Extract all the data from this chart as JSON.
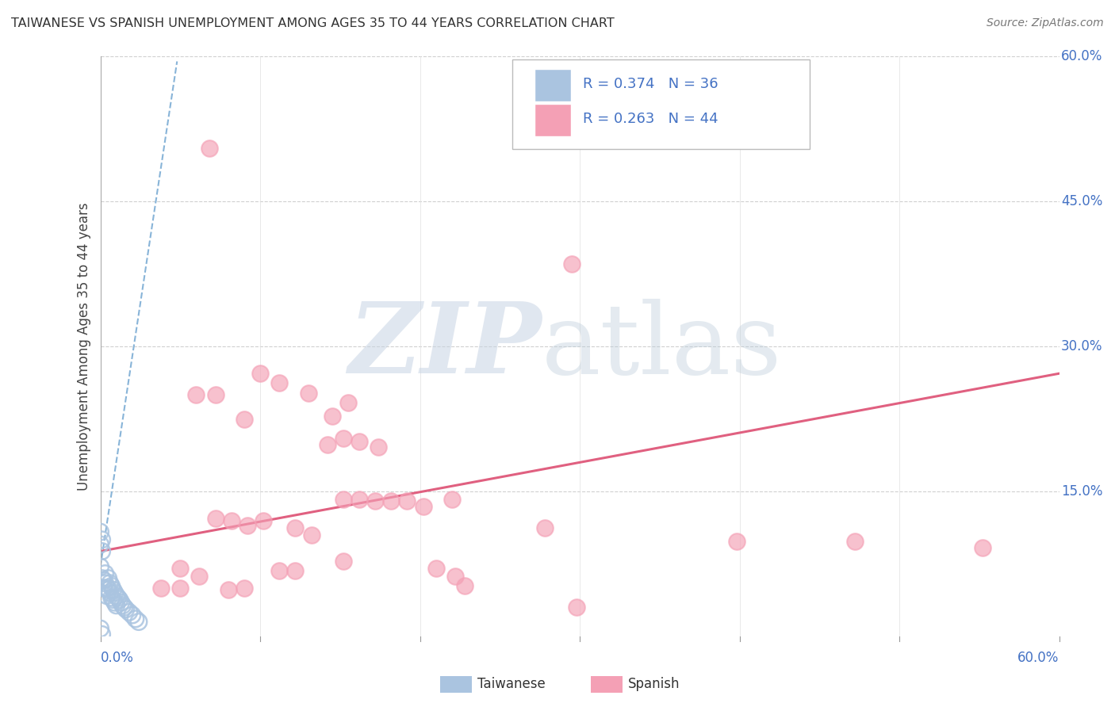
{
  "title": "TAIWANESE VS SPANISH UNEMPLOYMENT AMONG AGES 35 TO 44 YEARS CORRELATION CHART",
  "source": "Source: ZipAtlas.com",
  "ylabel": "Unemployment Among Ages 35 to 44 years",
  "xlim": [
    0.0,
    0.6
  ],
  "ylim": [
    0.0,
    0.6
  ],
  "grid_color": "#d0d0d0",
  "background_color": "#ffffff",
  "taiwanese_color": "#aac4e0",
  "spanish_color": "#f4a0b5",
  "taiwanese_edge_color": "#aac4e0",
  "spanish_edge_color": "#f4a0b5",
  "taiwanese_trend_color": "#88b4d8",
  "spanish_trend_color": "#e06080",
  "right_tick_color": "#4472c4",
  "bottom_tick_color": "#4472c4",
  "legend_text_color": "#4472c4",
  "taiwanese_R": "0.374",
  "taiwanese_N": "36",
  "spanish_R": "0.263",
  "spanish_N": "44",
  "taiwanese_points": [
    [
      0.0,
      0.108
    ],
    [
      0.0,
      0.095
    ],
    [
      0.001,
      0.1
    ],
    [
      0.001,
      0.088
    ],
    [
      0.0,
      0.072
    ],
    [
      0.001,
      0.06
    ],
    [
      0.002,
      0.058
    ],
    [
      0.002,
      0.05
    ],
    [
      0.003,
      0.065
    ],
    [
      0.003,
      0.055
    ],
    [
      0.004,
      0.05
    ],
    [
      0.004,
      0.042
    ],
    [
      0.005,
      0.06
    ],
    [
      0.005,
      0.048
    ],
    [
      0.006,
      0.055
    ],
    [
      0.006,
      0.045
    ],
    [
      0.007,
      0.052
    ],
    [
      0.007,
      0.04
    ],
    [
      0.008,
      0.048
    ],
    [
      0.008,
      0.038
    ],
    [
      0.009,
      0.045
    ],
    [
      0.009,
      0.035
    ],
    [
      0.01,
      0.042
    ],
    [
      0.01,
      0.032
    ],
    [
      0.011,
      0.04
    ],
    [
      0.012,
      0.038
    ],
    [
      0.013,
      0.035
    ],
    [
      0.014,
      0.032
    ],
    [
      0.015,
      0.03
    ],
    [
      0.016,
      0.028
    ],
    [
      0.018,
      0.025
    ],
    [
      0.02,
      0.022
    ],
    [
      0.022,
      0.018
    ],
    [
      0.024,
      0.015
    ],
    [
      0.0,
      0.008
    ],
    [
      0.001,
      0.002
    ]
  ],
  "spanish_points": [
    [
      0.068,
      0.505
    ],
    [
      0.295,
      0.385
    ],
    [
      0.06,
      0.25
    ],
    [
      0.072,
      0.25
    ],
    [
      0.09,
      0.225
    ],
    [
      0.1,
      0.272
    ],
    [
      0.112,
      0.262
    ],
    [
      0.13,
      0.252
    ],
    [
      0.145,
      0.228
    ],
    [
      0.155,
      0.242
    ],
    [
      0.142,
      0.198
    ],
    [
      0.152,
      0.205
    ],
    [
      0.162,
      0.202
    ],
    [
      0.174,
      0.196
    ],
    [
      0.152,
      0.142
    ],
    [
      0.162,
      0.142
    ],
    [
      0.172,
      0.14
    ],
    [
      0.182,
      0.14
    ],
    [
      0.192,
      0.14
    ],
    [
      0.202,
      0.134
    ],
    [
      0.22,
      0.142
    ],
    [
      0.072,
      0.122
    ],
    [
      0.082,
      0.12
    ],
    [
      0.092,
      0.115
    ],
    [
      0.102,
      0.12
    ],
    [
      0.122,
      0.112
    ],
    [
      0.132,
      0.105
    ],
    [
      0.278,
      0.112
    ],
    [
      0.398,
      0.098
    ],
    [
      0.472,
      0.098
    ],
    [
      0.552,
      0.092
    ],
    [
      0.152,
      0.078
    ],
    [
      0.228,
      0.052
    ],
    [
      0.298,
      0.03
    ],
    [
      0.05,
      0.07
    ],
    [
      0.062,
      0.062
    ],
    [
      0.112,
      0.068
    ],
    [
      0.122,
      0.068
    ],
    [
      0.038,
      0.05
    ],
    [
      0.05,
      0.05
    ],
    [
      0.08,
      0.048
    ],
    [
      0.09,
      0.05
    ],
    [
      0.21,
      0.07
    ],
    [
      0.222,
      0.062
    ]
  ],
  "taiwanese_trend_x": [
    0.0,
    0.048
  ],
  "taiwanese_trend_y": [
    0.072,
    0.595
  ],
  "spanish_trend_x": [
    0.0,
    0.6
  ],
  "spanish_trend_y": [
    0.088,
    0.272
  ]
}
